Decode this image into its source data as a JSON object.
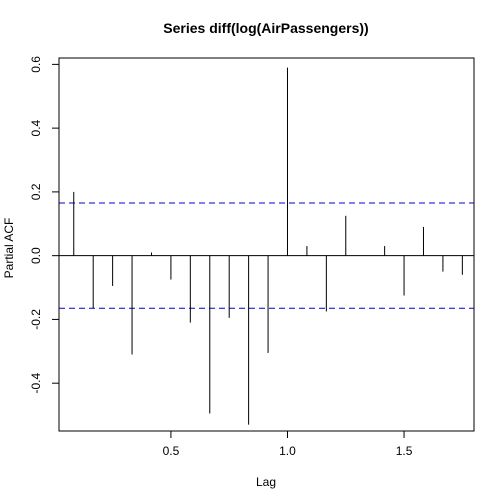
{
  "chart_data": {
    "type": "bar",
    "title": "Series  diff(log(AirPassengers))",
    "xlabel": "Lag",
    "ylabel": "Partial ACF",
    "x_ticks": [
      0.5,
      1.0,
      1.5
    ],
    "x_tick_labels": [
      "0.5",
      "1.0",
      "1.5"
    ],
    "y_ticks": [
      -0.4,
      -0.2,
      0.0,
      0.2,
      0.4,
      0.6
    ],
    "y_tick_labels": [
      "-0.4",
      "-0.2",
      "0.0",
      "0.2",
      "0.4",
      "0.6"
    ],
    "xlim": [
      0.02,
      1.8
    ],
    "ylim": [
      -0.55,
      0.62
    ],
    "grid": false,
    "confidence_band": 0.165,
    "zero_line_color": "#000000",
    "bar_color": "#000000",
    "band_color": "#0000cc",
    "lags": [
      0.0833,
      0.1667,
      0.25,
      0.3333,
      0.4167,
      0.5,
      0.5833,
      0.6667,
      0.75,
      0.8333,
      0.9167,
      1.0,
      1.0833,
      1.1667,
      1.25,
      1.3333,
      1.4167,
      1.5,
      1.5833,
      1.6667,
      1.75
    ],
    "values": [
      0.2,
      -0.165,
      -0.095,
      -0.31,
      0.01,
      -0.075,
      -0.21,
      -0.495,
      -0.195,
      -0.53,
      -0.305,
      0.59,
      0.03,
      -0.175,
      0.125,
      0.0,
      0.03,
      -0.125,
      0.09,
      -0.05,
      -0.06
    ]
  }
}
